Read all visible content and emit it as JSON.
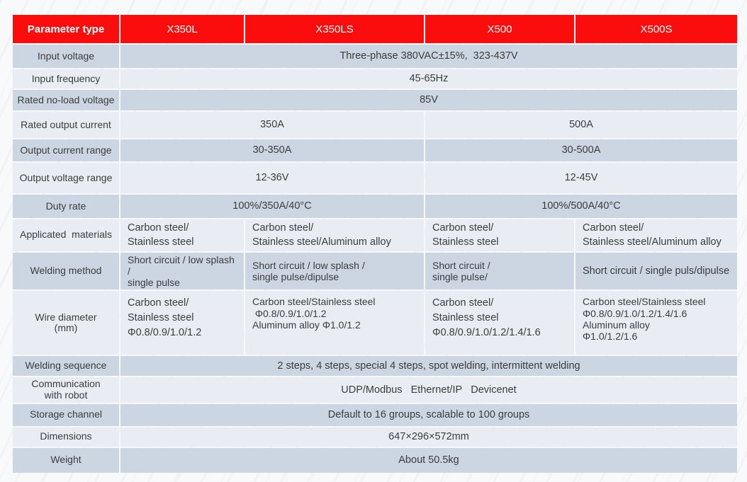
{
  "colors": {
    "header_bg": "#fc0d0d",
    "header_text": "#ffffff",
    "row_dark": "#ccd6e3",
    "row_light": "#e9edf3",
    "body_text": "#3c3c3c"
  },
  "table": {
    "header": {
      "param_label": "Parameter type",
      "models": [
        "X350L",
        "X350LS",
        "X500",
        "X500S"
      ]
    },
    "rows": [
      {
        "label_lines": [
          "Input voltage"
        ],
        "cells": [
          {
            "span": 4,
            "align": "center",
            "lines": [
              "Three-phase 380VAC±15%,  323-437V"
            ]
          }
        ]
      },
      {
        "label_lines": [
          "Input frequency"
        ],
        "cells": [
          {
            "span": 4,
            "align": "center",
            "lines": [
              "45-65Hz"
            ]
          }
        ]
      },
      {
        "label_lines": [
          "Rated no-load voltage"
        ],
        "cells": [
          {
            "span": 4,
            "align": "center",
            "lines": [
              "85V"
            ]
          }
        ]
      },
      {
        "label_lines": [
          "Rated output current"
        ],
        "cells": [
          {
            "span": 2,
            "align": "center",
            "lines": [
              "350A"
            ]
          },
          {
            "span": 2,
            "align": "center",
            "lines": [
              "500A"
            ]
          }
        ]
      },
      {
        "label_lines": [
          "Output current range"
        ],
        "cells": [
          {
            "span": 2,
            "align": "center",
            "lines": [
              "30-350A"
            ]
          },
          {
            "span": 2,
            "align": "center",
            "lines": [
              "30-500A"
            ]
          }
        ]
      },
      {
        "label_lines": [
          "Output voltage range"
        ],
        "cells": [
          {
            "span": 2,
            "align": "center",
            "lines": [
              "12-36V"
            ]
          },
          {
            "span": 2,
            "align": "center",
            "lines": [
              "12-45V"
            ]
          }
        ]
      },
      {
        "label_lines": [
          "Duty rate"
        ],
        "cells": [
          {
            "span": 2,
            "align": "center",
            "lines": [
              "100%/350A/40°C"
            ]
          },
          {
            "span": 2,
            "align": "center",
            "lines": [
              "100%/500A/40°C"
            ]
          }
        ]
      },
      {
        "label_lines": [
          "Applicated  materials"
        ],
        "cells": [
          {
            "span": 1,
            "align": "left",
            "lines": [
              "Carbon steel/",
              "Stainless steel"
            ]
          },
          {
            "span": 1,
            "align": "left",
            "lines": [
              "Carbon steel/",
              "Stainless steel/Aluminum alloy"
            ]
          },
          {
            "span": 1,
            "align": "left",
            "lines": [
              "Carbon steel/",
              "Stainless steel"
            ]
          },
          {
            "span": 1,
            "align": "left",
            "lines": [
              "Carbon steel/",
              "Stainless steel/Aluminum alloy"
            ]
          }
        ]
      },
      {
        "label_lines": [
          "Welding method"
        ],
        "cells": [
          {
            "span": 1,
            "align": "left",
            "tight": true,
            "lines": [
              "Short circuit / low splash /",
              "single pulse"
            ]
          },
          {
            "span": 1,
            "align": "left",
            "tight": true,
            "lines": [
              "Short circuit / low splash /",
              "single pulse/dipulse"
            ]
          },
          {
            "span": 1,
            "align": "left",
            "tight": true,
            "lines": [
              "Short circuit /",
              "single pulse/"
            ]
          },
          {
            "span": 1,
            "align": "left",
            "lines": [
              "Short circuit / single puls/dipulse"
            ]
          }
        ]
      },
      {
        "label_lines": [
          "Wire diameter",
          "(mm)"
        ],
        "cells": [
          {
            "span": 1,
            "align": "left",
            "lines": [
              "Carbon steel/",
              "Stainless steel",
              "Φ0.8/0.9/1.0/1.2"
            ]
          },
          {
            "span": 1,
            "align": "left",
            "tight": true,
            "lines": [
              "Carbon steel/Stainless steel",
              " Φ0.8/0.9/1.0/1.2",
              "Aluminum alloy Φ1.0/1.2"
            ]
          },
          {
            "span": 1,
            "align": "left",
            "lines": [
              "Carbon steel/",
              "Stainless steel",
              "Φ0.8/0.9/1.0/1.2/1.4/1.6"
            ]
          },
          {
            "span": 1,
            "align": "left",
            "tight": true,
            "lines": [
              "Carbon steel/Stainless steel",
              "Φ0.8/0.9/1.0/1.2/1.4/1.6",
              "Aluminum alloy",
              "Φ1.0/1.2/1.6"
            ]
          }
        ]
      },
      {
        "label_lines": [
          "Welding sequence"
        ],
        "cells": [
          {
            "span": 4,
            "align": "center",
            "lines": [
              "2 steps, 4 steps, special 4 steps, spot welding, intermittent welding"
            ]
          }
        ]
      },
      {
        "label_lines": [
          "Communication",
          "with robot"
        ],
        "cells": [
          {
            "span": 4,
            "align": "center",
            "lines": [
              "UDP/Modbus   Ethernet/IP   Devicenet"
            ]
          }
        ]
      },
      {
        "label_lines": [
          "Storage channel"
        ],
        "cells": [
          {
            "span": 4,
            "align": "center",
            "lines": [
              "Default to 16 groups, scalable to 100 groups"
            ]
          }
        ]
      },
      {
        "label_lines": [
          "Dimensions"
        ],
        "cells": [
          {
            "span": 4,
            "align": "center",
            "lines": [
              "647×296×572mm"
            ]
          }
        ]
      },
      {
        "label_lines": [
          "Weight"
        ],
        "cells": [
          {
            "span": 4,
            "align": "center",
            "lines": [
              "About 50.5kg"
            ]
          }
        ]
      }
    ]
  }
}
